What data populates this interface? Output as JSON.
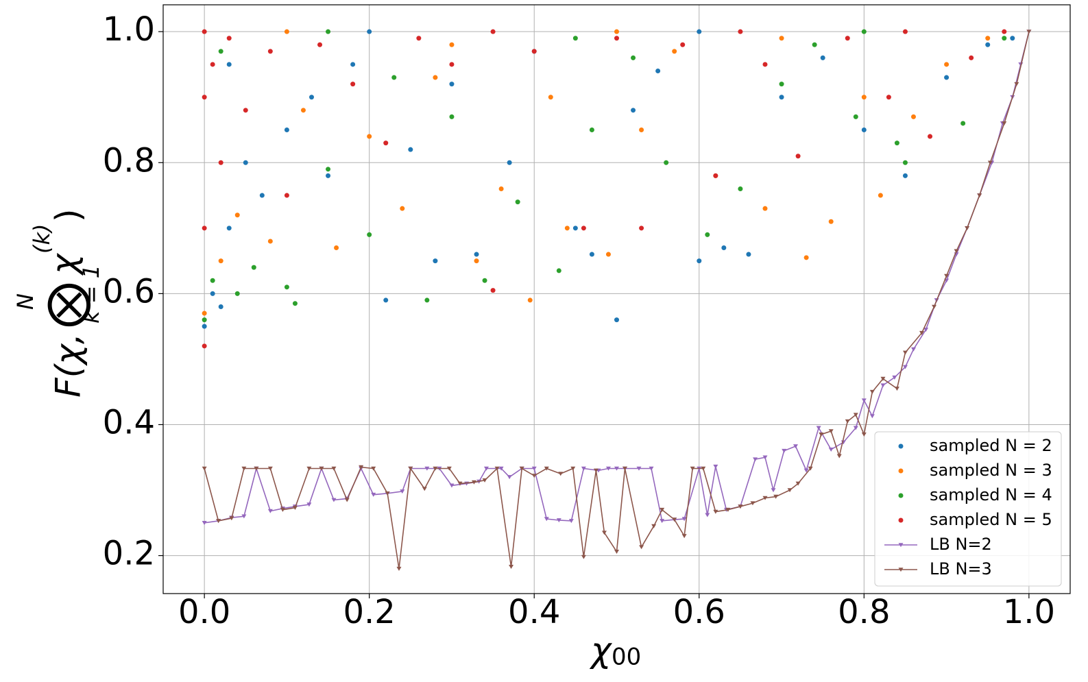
{
  "chart_data": {
    "type": "scatter",
    "xlabel": {
      "main": "χ",
      "sub": "00"
    },
    "ylabel": {
      "main": "F(χ,",
      "op": "⨂",
      "sup": "N",
      "sub": "k = 1",
      "arg": "χ",
      "argsup": "(k)",
      "close": ")"
    },
    "xlim": [
      -0.05,
      1.05
    ],
    "ylim": [
      0.142,
      1.041
    ],
    "xticks": [
      {
        "value": 0,
        "label": "0.0"
      },
      0.2,
      0.4,
      0.6,
      0.8,
      {
        "value": 1,
        "label": "1.0"
      }
    ],
    "yticks": [
      0.2,
      0.4,
      0.6,
      0.8,
      {
        "value": 1,
        "label": "1.0"
      }
    ],
    "grid": true,
    "legend": "lower right",
    "series": [
      {
        "name": "sampled N = 2",
        "color": "#1f77b4",
        "kind": "points",
        "x": [
          0,
          0.01,
          0.02,
          0.03,
          0.05,
          0.07,
          0.1,
          0.13,
          0.15,
          0.18,
          0.22,
          0.25,
          0.28,
          0.3,
          0.33,
          0.37,
          0.4,
          0.45,
          0.47,
          0.5,
          0.52,
          0.55,
          0.6,
          0.63,
          0.66,
          0.7,
          0.75,
          0.8,
          0.85,
          0.9,
          0.95,
          0.98,
          0.2,
          0.6,
          0.03
        ],
        "values": [
          0.55,
          0.6,
          0.58,
          0.7,
          0.8,
          0.75,
          0.85,
          0.9,
          0.78,
          0.95,
          0.59,
          0.82,
          0.65,
          0.92,
          0.66,
          0.8,
          0.97,
          0.7,
          0.66,
          0.56,
          0.88,
          0.94,
          0.65,
          0.67,
          0.66,
          0.9,
          0.96,
          0.85,
          0.78,
          0.93,
          0.98,
          0.99,
          1.0,
          1.0,
          0.95
        ]
      },
      {
        "name": "sampled N = 3",
        "color": "#ff7f0e",
        "kind": "points",
        "x": [
          0,
          0.02,
          0.04,
          0.08,
          0.12,
          0.16,
          0.2,
          0.24,
          0.28,
          0.33,
          0.36,
          0.395,
          0.42,
          0.44,
          0.49,
          0.53,
          0.57,
          0.62,
          0.68,
          0.73,
          0.76,
          0.8,
          0.82,
          0.86,
          0.9,
          0.95,
          0.1,
          0.5,
          0.7,
          0.3
        ],
        "values": [
          0.57,
          0.65,
          0.72,
          0.68,
          0.88,
          0.67,
          0.84,
          0.73,
          0.93,
          0.65,
          0.76,
          0.59,
          0.9,
          0.7,
          0.66,
          0.85,
          0.97,
          0.78,
          0.73,
          0.655,
          0.71,
          0.9,
          0.75,
          0.87,
          0.95,
          0.99,
          1.0,
          1.0,
          0.99,
          0.98
        ]
      },
      {
        "name": "sampled N = 4",
        "color": "#2ca02c",
        "kind": "points",
        "x": [
          0,
          0.01,
          0.04,
          0.06,
          0.1,
          0.11,
          0.15,
          0.2,
          0.23,
          0.27,
          0.3,
          0.34,
          0.38,
          0.43,
          0.47,
          0.52,
          0.56,
          0.61,
          0.65,
          0.7,
          0.74,
          0.79,
          0.84,
          0.85,
          0.92,
          0.97,
          0.15,
          0.45,
          0.8,
          0.02
        ],
        "values": [
          0.56,
          0.62,
          0.6,
          0.64,
          0.61,
          0.585,
          0.79,
          0.69,
          0.93,
          0.59,
          0.87,
          0.62,
          0.74,
          0.635,
          0.85,
          0.96,
          0.8,
          0.69,
          0.76,
          0.92,
          0.98,
          0.87,
          0.83,
          0.8,
          0.86,
          0.99,
          1.0,
          0.99,
          1.0,
          0.97
        ]
      },
      {
        "name": "sampled N = 5",
        "color": "#d62728",
        "kind": "points",
        "x": [
          0,
          0,
          0,
          0,
          0.01,
          0.02,
          0.03,
          0.05,
          0.08,
          0.1,
          0.14,
          0.18,
          0.22,
          0.26,
          0.3,
          0.35,
          0.4,
          0.46,
          0.5,
          0.53,
          0.58,
          0.62,
          0.68,
          0.72,
          0.78,
          0.83,
          0.88,
          0.93,
          0.97,
          0.65,
          0.35,
          0.85
        ],
        "values": [
          0.52,
          0.7,
          0.9,
          1.0,
          0.95,
          0.8,
          0.99,
          0.88,
          0.97,
          0.75,
          0.98,
          0.92,
          0.83,
          0.99,
          0.95,
          0.605,
          0.97,
          0.7,
          0.99,
          0.7,
          0.98,
          0.78,
          0.95,
          0.81,
          0.99,
          0.9,
          0.84,
          0.96,
          1.0,
          1.0,
          1.0,
          1.0
        ]
      },
      {
        "name": "LB N=2",
        "color": "#9467bd",
        "kind": "line",
        "x": [
          0,
          0.017,
          0.033,
          0.048,
          0.063,
          0.08,
          0.095,
          0.11,
          0.127,
          0.142,
          0.157,
          0.173,
          0.19,
          0.205,
          0.222,
          0.24,
          0.25,
          0.27,
          0.285,
          0.3,
          0.318,
          0.333,
          0.342,
          0.36,
          0.37,
          0.385,
          0.4,
          0.415,
          0.43,
          0.445,
          0.46,
          0.478,
          0.49,
          0.5,
          0.51,
          0.527,
          0.542,
          0.555,
          0.57,
          0.582,
          0.6,
          0.61,
          0.62,
          0.633,
          0.65,
          0.668,
          0.68,
          0.69,
          0.703,
          0.717,
          0.73,
          0.745,
          0.76,
          0.775,
          0.79,
          0.8,
          0.81,
          0.823,
          0.837,
          0.85,
          0.86,
          0.875,
          0.888,
          0.9,
          0.912,
          0.925,
          0.94,
          0.955,
          0.968,
          0.98,
          0.99,
          1.0
        ],
        "values": [
          0.25,
          0.253,
          0.258,
          0.26,
          0.333,
          0.268,
          0.272,
          0.275,
          0.278,
          0.333,
          0.285,
          0.287,
          0.333,
          0.293,
          0.295,
          0.298,
          0.333,
          0.333,
          0.333,
          0.307,
          0.31,
          0.313,
          0.333,
          0.333,
          0.32,
          0.333,
          0.333,
          0.256,
          0.254,
          0.253,
          0.333,
          0.33,
          0.333,
          0.333,
          0.333,
          0.333,
          0.333,
          0.253,
          0.255,
          0.256,
          0.333,
          0.262,
          0.336,
          0.27,
          0.275,
          0.347,
          0.35,
          0.3,
          0.36,
          0.367,
          0.33,
          0.395,
          0.362,
          0.373,
          0.395,
          0.437,
          0.413,
          0.46,
          0.472,
          0.488,
          0.515,
          0.545,
          0.59,
          0.62,
          0.66,
          0.7,
          0.75,
          0.8,
          0.86,
          0.9,
          0.95,
          1.0
        ]
      },
      {
        "name": "LB N=3",
        "color": "#8c564b",
        "kind": "line",
        "x": [
          0,
          0.017,
          0.033,
          0.048,
          0.063,
          0.08,
          0.095,
          0.11,
          0.127,
          0.142,
          0.157,
          0.173,
          0.19,
          0.205,
          0.222,
          0.236,
          0.25,
          0.267,
          0.28,
          0.297,
          0.31,
          0.327,
          0.34,
          0.355,
          0.372,
          0.385,
          0.4,
          0.415,
          0.432,
          0.447,
          0.46,
          0.475,
          0.485,
          0.5,
          0.51,
          0.53,
          0.545,
          0.555,
          0.57,
          0.582,
          0.592,
          0.605,
          0.62,
          0.635,
          0.65,
          0.665,
          0.68,
          0.693,
          0.71,
          0.72,
          0.735,
          0.748,
          0.76,
          0.77,
          0.78,
          0.79,
          0.8,
          0.81,
          0.823,
          0.84,
          0.85,
          0.87,
          0.885,
          0.9,
          0.912,
          0.925,
          0.94,
          0.953,
          0.97,
          0.985,
          1.0
        ],
        "values": [
          0.333,
          0.253,
          0.257,
          0.333,
          0.333,
          0.333,
          0.27,
          0.273,
          0.333,
          0.333,
          0.333,
          0.285,
          0.335,
          0.333,
          0.295,
          0.18,
          0.333,
          0.302,
          0.333,
          0.333,
          0.31,
          0.312,
          0.315,
          0.333,
          0.183,
          0.333,
          0.322,
          0.333,
          0.325,
          0.333,
          0.198,
          0.33,
          0.235,
          0.206,
          0.333,
          0.213,
          0.245,
          0.27,
          0.255,
          0.23,
          0.333,
          0.333,
          0.267,
          0.27,
          0.275,
          0.28,
          0.288,
          0.29,
          0.3,
          0.31,
          0.333,
          0.385,
          0.39,
          0.352,
          0.405,
          0.415,
          0.385,
          0.45,
          0.47,
          0.455,
          0.51,
          0.54,
          0.58,
          0.627,
          0.665,
          0.7,
          0.75,
          0.8,
          0.86,
          0.92,
          1.0
        ]
      }
    ]
  }
}
